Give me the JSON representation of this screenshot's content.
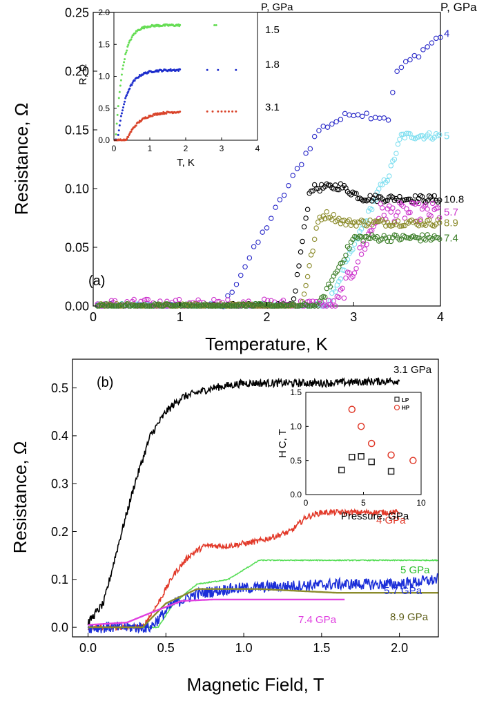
{
  "chart_data": [
    {
      "type": "scatter",
      "panel_label": "(a)",
      "xlabel": "Temperature, K",
      "ylabel": "Resistance, Ω",
      "xlim": [
        0,
        4
      ],
      "ylim": [
        0,
        0.25
      ],
      "x_ticks": [
        "0",
        "1",
        "2",
        "3",
        "4"
      ],
      "y_ticks": [
        "0.00",
        "0.05",
        "0.10",
        "0.15",
        "0.20",
        "0.25"
      ],
      "legend_title": "P, GPa",
      "series": [
        {
          "name": "4",
          "color": "#2828c8",
          "tc": 1.5,
          "width": 0.75,
          "plateau": [
            [
              2.6,
              0.15
            ],
            [
              3.0,
              0.165
            ],
            [
              3.4,
              0.16
            ],
            [
              3.5,
              0.2
            ],
            [
              4.0,
              0.23
            ]
          ]
        },
        {
          "name": "5",
          "color": "#7fdff0",
          "tc": 2.7,
          "width": 0.75,
          "plateau": [
            [
              3.3,
              0.1
            ],
            [
              3.4,
              0.11
            ],
            [
              3.55,
              0.145
            ],
            [
              4.0,
              0.145
            ]
          ]
        },
        {
          "name": "10.8",
          "color": "#000000",
          "tc": 2.3,
          "width": 0.4,
          "plateau": [
            [
              2.5,
              0.1
            ],
            [
              2.85,
              0.102
            ],
            [
              3.1,
              0.092
            ],
            [
              4.0,
              0.091
            ]
          ]
        },
        {
          "name": "5.7",
          "color": "#cc33cc",
          "tc": 2.8,
          "width": 0.8,
          "plateau": [
            [
              3.3,
              0.08
            ],
            [
              4.0,
              0.08
            ]
          ]
        },
        {
          "name": "8.9",
          "color": "#8b8b2b",
          "tc": 2.4,
          "width": 0.5,
          "plateau": [
            [
              2.6,
              0.075
            ],
            [
              2.7,
              0.078
            ],
            [
              2.9,
              0.071
            ],
            [
              4.0,
              0.071
            ]
          ]
        },
        {
          "name": "7.4",
          "color": "#3d7f2a",
          "tc": 2.6,
          "width": 0.8,
          "plateau": [
            [
              3.0,
              0.058
            ],
            [
              4.0,
              0.058
            ]
          ]
        }
      ],
      "inset": {
        "xlabel": "T, K",
        "ylabel": "R, Ω",
        "xlim": [
          0,
          4
        ],
        "ylim": [
          0,
          2.0
        ],
        "x_ticks": [
          "0",
          "1",
          "2",
          "3",
          "4"
        ],
        "y_ticks": [
          "0.0",
          "0.5",
          "1.0",
          "1.5",
          "2.0"
        ],
        "legend_title": "P, GPa",
        "series": [
          {
            "name": "1.5",
            "color": "#66dd55",
            "plateau": 1.8,
            "onset": 0.05,
            "sharp": 0.2,
            "extra_x": [
              2.8,
              2.85
            ]
          },
          {
            "name": "1.8",
            "color": "#1f2fcc",
            "plateau": 1.1,
            "onset": 0.1,
            "sharp": 0.25,
            "extra_x": [
              2.6,
              2.9,
              3.4
            ]
          },
          {
            "name": "3.1",
            "color": "#d9442b",
            "plateau": 0.45,
            "onset": 0.35,
            "sharp": 0.35,
            "extra_x": [
              2.6,
              2.75,
              2.9,
              3.0,
              3.1,
              3.2,
              3.3,
              3.4
            ]
          }
        ]
      }
    },
    {
      "type": "line",
      "panel_label": "(b)",
      "xlabel": "Magnetic Field, T",
      "ylabel": "Resistance, Ω",
      "xlim": [
        -0.1,
        2.25
      ],
      "ylim": [
        -0.02,
        0.56
      ],
      "x_ticks": [
        "0.0",
        "0.5",
        "1.0",
        "1.5",
        "2.0"
      ],
      "y_ticks": [
        "0.0",
        "0.1",
        "0.2",
        "0.3",
        "0.4",
        "0.5"
      ],
      "series": [
        {
          "name": "3.1 GPa",
          "color": "#000000",
          "noise": 0.008,
          "points": [
            [
              0,
              0.01
            ],
            [
              0.1,
              0.05
            ],
            [
              0.2,
              0.18
            ],
            [
              0.3,
              0.3
            ],
            [
              0.4,
              0.4
            ],
            [
              0.5,
              0.45
            ],
            [
              0.6,
              0.48
            ],
            [
              0.8,
              0.5
            ],
            [
              1.0,
              0.51
            ],
            [
              1.5,
              0.51
            ],
            [
              2.0,
              0.515
            ]
          ]
        },
        {
          "name": "4 GPa",
          "color": "#e23a2a",
          "noise": 0.006,
          "points": [
            [
              0,
              0.0
            ],
            [
              0.35,
              0.0
            ],
            [
              0.45,
              0.05
            ],
            [
              0.55,
              0.11
            ],
            [
              0.65,
              0.15
            ],
            [
              0.75,
              0.17
            ],
            [
              0.9,
              0.17
            ],
            [
              1.1,
              0.18
            ],
            [
              1.2,
              0.19
            ],
            [
              1.3,
              0.2
            ],
            [
              1.4,
              0.23
            ],
            [
              1.5,
              0.24
            ],
            [
              2.0,
              0.24
            ]
          ]
        },
        {
          "name": "5 GPa",
          "color": "#55dd55",
          "noise": 0.001,
          "points": [
            [
              0,
              0.0
            ],
            [
              0.45,
              0.0
            ],
            [
              0.55,
              0.05
            ],
            [
              0.7,
              0.09
            ],
            [
              0.9,
              0.1
            ],
            [
              1.0,
              0.12
            ],
            [
              1.1,
              0.14
            ],
            [
              2.25,
              0.14
            ]
          ]
        },
        {
          "name": "5.7 GPa",
          "color": "#1c2fd8",
          "noise": 0.012,
          "points": [
            [
              0,
              0.0
            ],
            [
              0.4,
              0.0
            ],
            [
              0.55,
              0.05
            ],
            [
              0.7,
              0.07
            ],
            [
              0.9,
              0.08
            ],
            [
              1.2,
              0.085
            ],
            [
              1.6,
              0.09
            ],
            [
              2.0,
              0.09
            ],
            [
              2.25,
              0.1
            ]
          ]
        },
        {
          "name": "8.9 GPa",
          "color": "#8b8b2b",
          "noise": 0.0,
          "points": [
            [
              0,
              0.0
            ],
            [
              0.35,
              0.0
            ],
            [
              0.5,
              0.05
            ],
            [
              0.7,
              0.08
            ],
            [
              1.1,
              0.08
            ],
            [
              1.6,
              0.072
            ],
            [
              2.25,
              0.072
            ]
          ]
        },
        {
          "name": "7.4 GPa",
          "color": "#e040e0",
          "noise": 0.0,
          "points": [
            [
              0,
              0.005
            ],
            [
              0.25,
              0.01
            ],
            [
              0.4,
              0.03
            ],
            [
              0.6,
              0.055
            ],
            [
              0.8,
              0.058
            ],
            [
              1.65,
              0.058
            ]
          ]
        }
      ],
      "inset": {
        "xlabel": "Pressure, GPa",
        "ylabel": "H C, T",
        "xlim": [
          0,
          10
        ],
        "ylim": [
          0,
          1.5
        ],
        "x_ticks": [
          "0",
          "5",
          "10"
        ],
        "y_ticks": [
          "0.0",
          "0.5",
          "1.0",
          "1.5"
        ],
        "series": [
          {
            "name": "LP",
            "color": "#222222",
            "marker": "square",
            "points": [
              [
                3.1,
                0.36
              ],
              [
                4.0,
                0.55
              ],
              [
                4.8,
                0.56
              ],
              [
                5.7,
                0.48
              ],
              [
                7.4,
                0.34
              ]
            ]
          },
          {
            "name": "HP",
            "color": "#e03a2a",
            "marker": "circle",
            "points": [
              [
                4.0,
                1.25
              ],
              [
                4.8,
                1.0
              ],
              [
                5.7,
                0.75
              ],
              [
                7.4,
                0.58
              ],
              [
                9.3,
                0.5
              ]
            ]
          }
        ]
      }
    }
  ]
}
